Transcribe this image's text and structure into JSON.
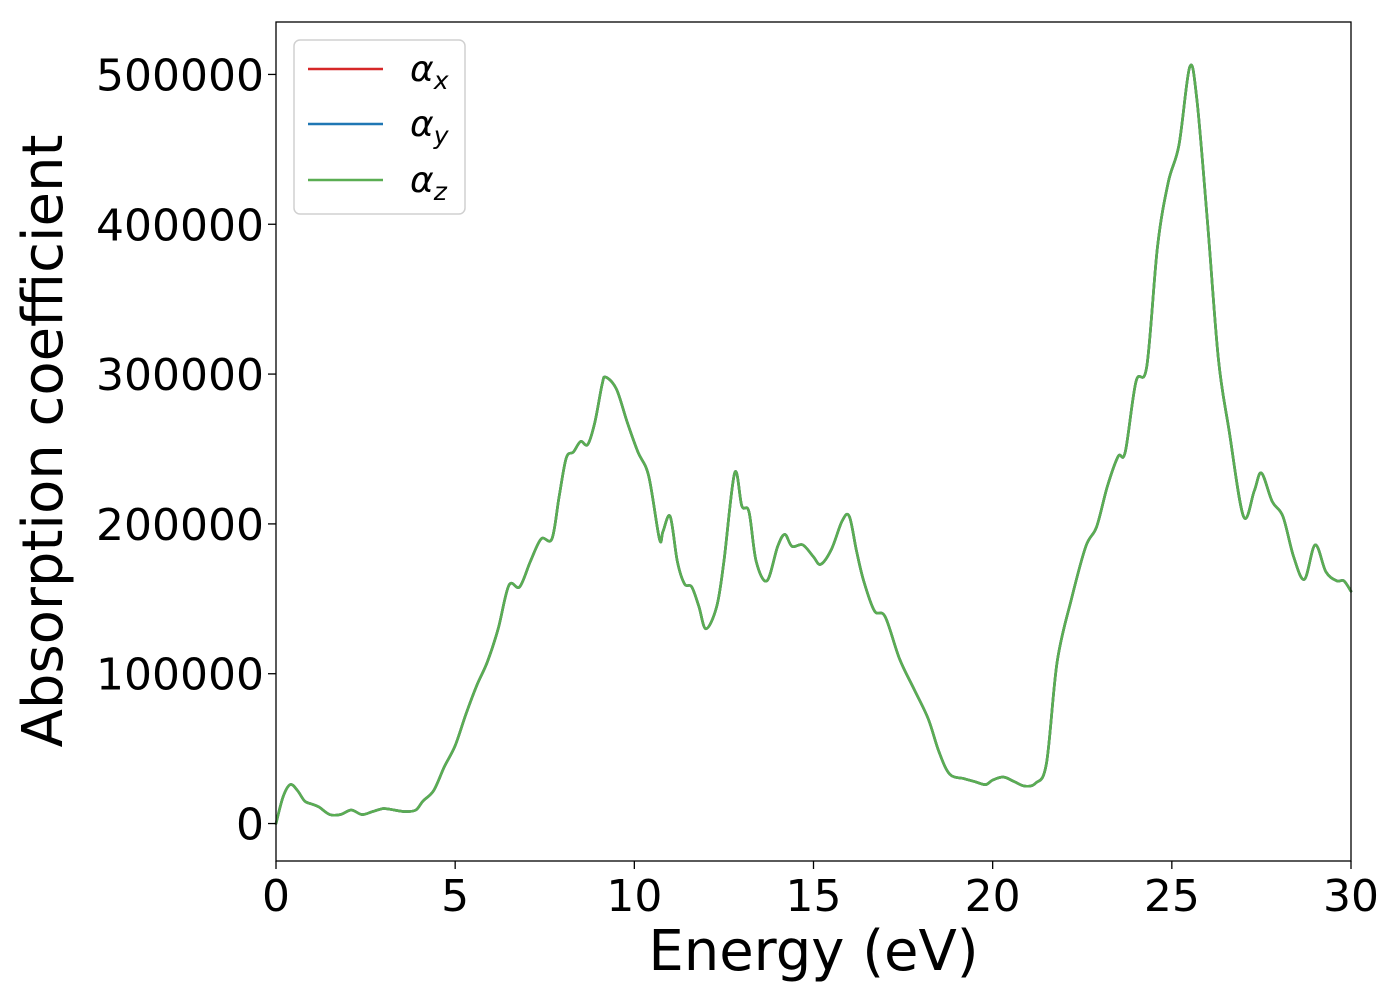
{
  "chart_data": {
    "type": "line",
    "title": "",
    "xlabel": "Energy (eV)",
    "ylabel": "Absorption coefficient",
    "xlim": [
      0,
      30
    ],
    "ylim": [
      -25000,
      535000
    ],
    "grid": false,
    "legend_position": "top-left",
    "xticks": [
      0,
      5,
      10,
      15,
      20,
      25,
      30
    ],
    "xtick_labels": [
      "0",
      "5",
      "10",
      "15",
      "20",
      "25",
      "30"
    ],
    "yticks": [
      0,
      100000,
      200000,
      300000,
      400000,
      500000
    ],
    "ytick_labels": [
      "0",
      "100000",
      "200000",
      "300000",
      "400000",
      "500000"
    ],
    "series": [
      {
        "name": "α",
        "subscript": "x",
        "color": "#d62728"
      },
      {
        "name": "α",
        "subscript": "y",
        "color": "#1f77b4"
      },
      {
        "name": "α",
        "subscript": "z",
        "color": "#5aad52"
      }
    ],
    "x": [
      0,
      0.2,
      0.4,
      0.6,
      0.8,
      1.0,
      1.2,
      1.5,
      1.8,
      2.1,
      2.4,
      2.7,
      3.0,
      3.3,
      3.6,
      3.9,
      4.1,
      4.4,
      4.7,
      5.0,
      5.3,
      5.6,
      5.9,
      6.2,
      6.5,
      6.8,
      7.1,
      7.4,
      7.7,
      7.9,
      8.1,
      8.3,
      8.5,
      8.7,
      8.9,
      9.1,
      9.2,
      9.5,
      9.8,
      10.1,
      10.4,
      10.7,
      10.8,
      11.0,
      11.2,
      11.4,
      11.6,
      11.8,
      12.0,
      12.3,
      12.5,
      12.8,
      13.0,
      13.2,
      13.4,
      13.7,
      14.0,
      14.2,
      14.4,
      14.7,
      15.0,
      15.2,
      15.5,
      15.8,
      16.0,
      16.2,
      16.4,
      16.7,
      17.0,
      17.4,
      17.8,
      18.2,
      18.5,
      18.8,
      19.2,
      19.5,
      19.8,
      20.0,
      20.3,
      20.6,
      20.9,
      21.2,
      21.5,
      21.8,
      22.2,
      22.6,
      22.9,
      23.2,
      23.5,
      23.7,
      24.0,
      24.3,
      24.6,
      24.9,
      25.2,
      25.5,
      25.7,
      26.0,
      26.3,
      26.6,
      27.0,
      27.3,
      27.5,
      27.8,
      28.1,
      28.4,
      28.7,
      29.0,
      29.3,
      29.6,
      29.8,
      30.0
    ],
    "values": [
      0,
      18000,
      26000,
      22000,
      15000,
      13000,
      11000,
      6000,
      6000,
      9000,
      6000,
      8000,
      10000,
      9000,
      8000,
      9000,
      15000,
      22000,
      38000,
      52000,
      73000,
      92000,
      108000,
      130000,
      159000,
      158000,
      175000,
      190000,
      190000,
      218000,
      244000,
      248000,
      255000,
      253000,
      268000,
      293000,
      298000,
      290000,
      268000,
      248000,
      232000,
      190000,
      195000,
      205000,
      175000,
      160000,
      158000,
      145000,
      130000,
      145000,
      175000,
      234000,
      212000,
      208000,
      175000,
      162000,
      185000,
      193000,
      185000,
      186000,
      178000,
      173000,
      183000,
      202000,
      205000,
      182000,
      162000,
      142000,
      138000,
      110000,
      90000,
      70000,
      48000,
      33000,
      30000,
      28000,
      26000,
      29000,
      31000,
      28000,
      25000,
      27000,
      40000,
      108000,
      150000,
      185000,
      198000,
      225000,
      245000,
      248000,
      295000,
      305000,
      385000,
      428000,
      453000,
      505000,
      483000,
      400000,
      310000,
      262000,
      205000,
      222000,
      234000,
      215000,
      205000,
      178000,
      163000,
      186000,
      168000,
      162000,
      162000,
      155000
    ]
  }
}
